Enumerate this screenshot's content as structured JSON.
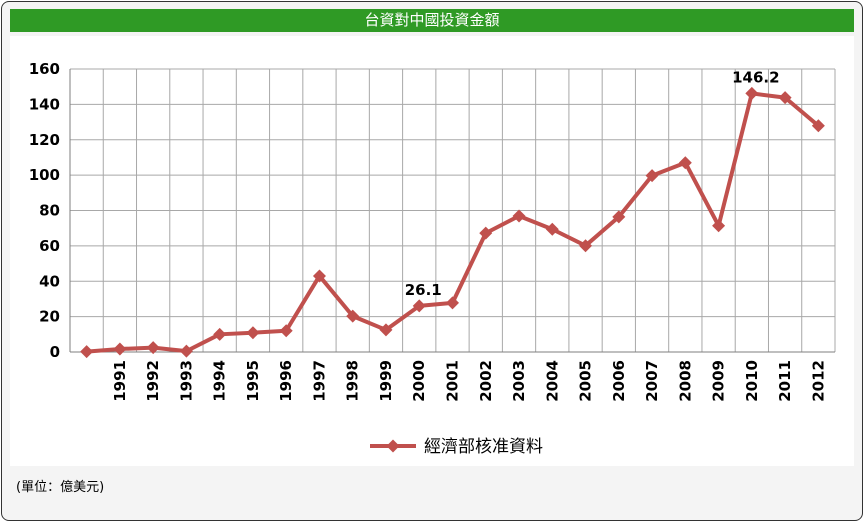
{
  "title": "台資對中國投資金額",
  "unit_note": "(單位：億美元)",
  "chart_data": {
    "type": "line",
    "categories": [
      "",
      "1991",
      "1992",
      "1993",
      "1994",
      "1995",
      "1996",
      "1997",
      "1998",
      "1999",
      "2000",
      "2001",
      "2002",
      "2003",
      "2004",
      "2005",
      "2006",
      "2007",
      "2008",
      "2009",
      "2010",
      "2011",
      "2012"
    ],
    "series": [
      {
        "name": "經濟部核准資料",
        "color": "#c0504d",
        "marker": "diamond",
        "values": [
          0.2,
          1.7,
          2.5,
          0.5,
          10.0,
          10.9,
          12.0,
          43.0,
          20.3,
          12.5,
          26.1,
          27.8,
          67.2,
          76.9,
          69.4,
          60.1,
          76.4,
          99.7,
          107.0,
          71.4,
          146.2,
          143.8,
          127.9
        ]
      }
    ],
    "annotations": [
      {
        "category": "2000",
        "value": 26.1,
        "label": "26.1"
      },
      {
        "category": "2010",
        "value": 146.2,
        "label": "146.2"
      }
    ],
    "ylim": [
      0,
      160
    ],
    "yticks": [
      "0",
      "20",
      "40",
      "60",
      "80",
      "100",
      "120",
      "140",
      "160"
    ],
    "grid": true,
    "legend": "bottom-center"
  }
}
